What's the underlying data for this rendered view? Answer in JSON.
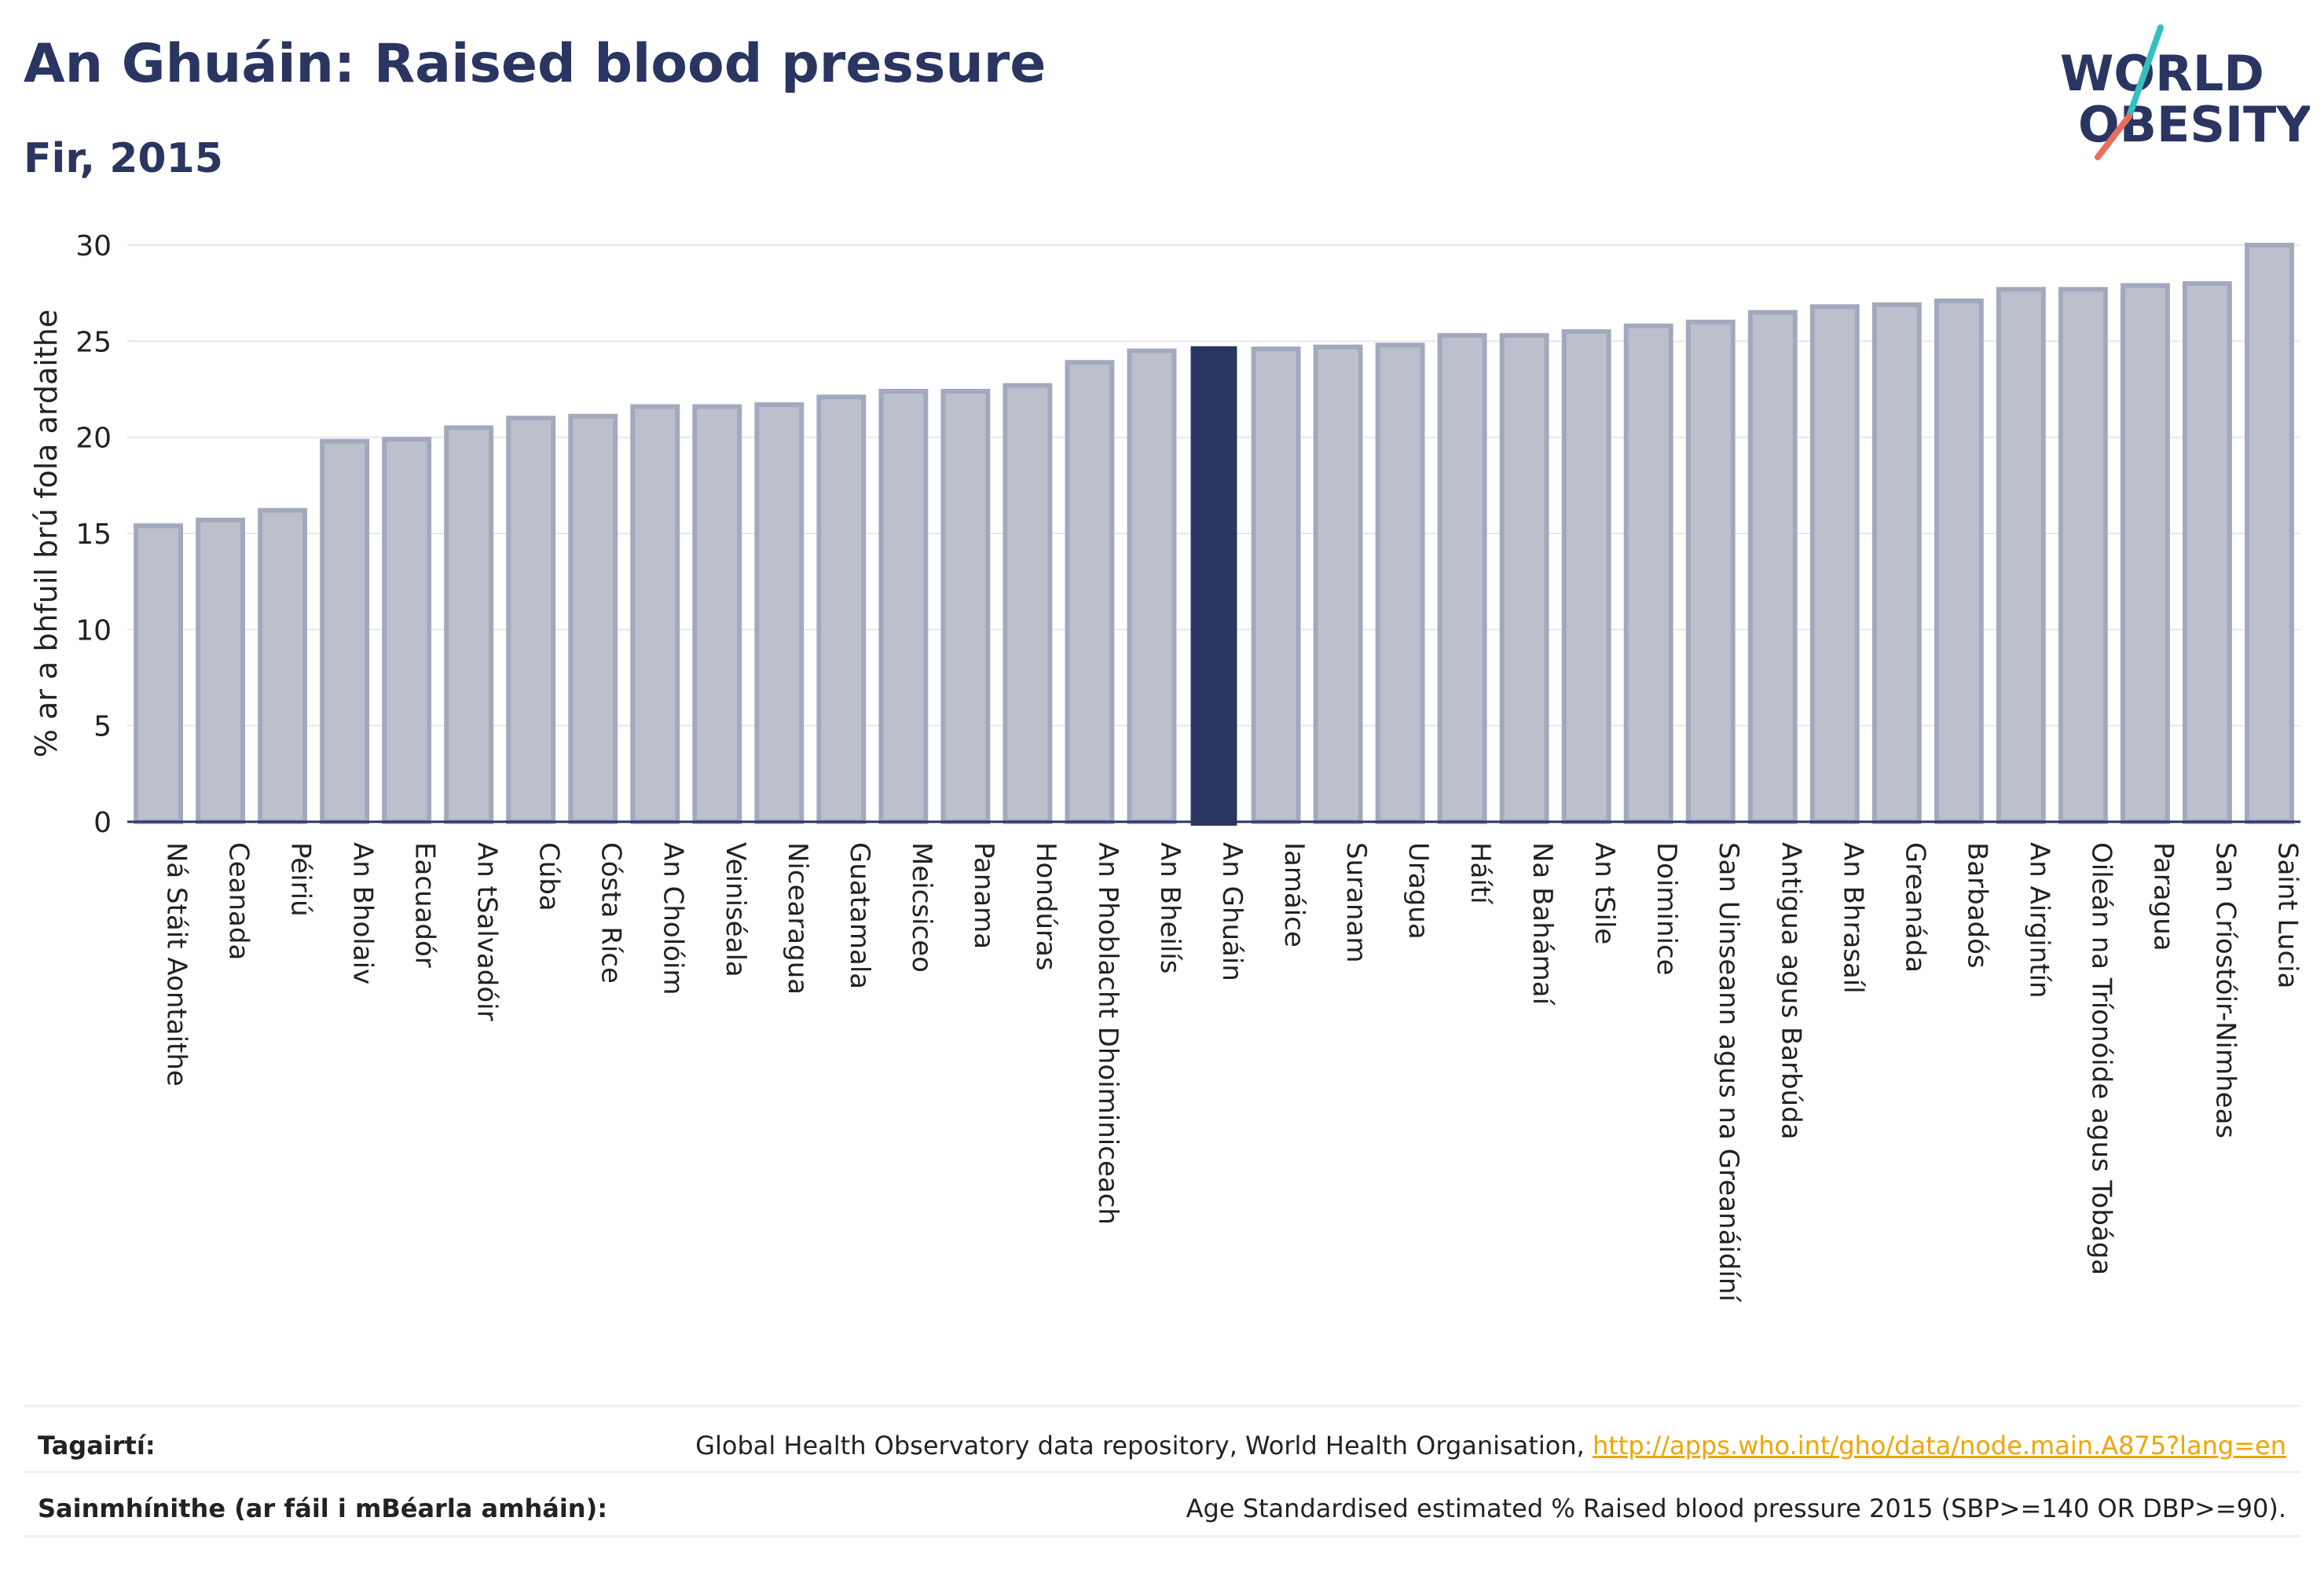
{
  "header": {
    "title": "An Ghuáin: Raised blood pressure",
    "subtitle": "Fir, 2015"
  },
  "logo": {
    "line1": "WORLD",
    "line2": "OBESITY",
    "colors": {
      "text": "#2a3561",
      "slash_top": "#35c0c0",
      "slash_bottom": "#e8705a"
    }
  },
  "chart_data": {
    "type": "bar",
    "ylabel": "% ar a bhfuil brú fola ardaithe",
    "ylim": [
      0,
      30
    ],
    "yticks": [
      0,
      5,
      10,
      15,
      20,
      25,
      30
    ],
    "grid": true,
    "highlight": "An Ghuáin",
    "colors": {
      "bar": "#bcc0cd",
      "bar_border": "#a3a9bd",
      "highlight": "#2a3561",
      "grid": "#e6e8ee",
      "axis": "#2a3561"
    },
    "categories": [
      "Ná Stáit Aontaithe",
      "Ceanada",
      "Péiriú",
      "An Bholaiv",
      "Eacuadór",
      "An tSalvadóir",
      "Cúba",
      "Cósta Ríce",
      "An Cholóim",
      "Veiniséala",
      "Nicearagua",
      "Guatamala",
      "Meicsiceo",
      "Panama",
      "Hondúras",
      "An Phoblacht Dhoiminiceach",
      "An Bheilís",
      "An Ghuáin",
      "Iamáice",
      "Suranam",
      "Uragua",
      "Háítí",
      "Na Bahámaí",
      "An tSile",
      "Doiminice",
      "San Uinseann agus na Greanáidíní",
      "Antigua agus Barbúda",
      "An Bhrasaíl",
      "Greanáda",
      "Barbadós",
      "An Airgintín",
      "Oileán na Tríonóide agus Tobága",
      "Paragua",
      "San Críostóir-Nimheas",
      "Saint Lucia"
    ],
    "values": [
      15.4,
      15.7,
      16.2,
      19.8,
      19.9,
      20.5,
      21.0,
      21.1,
      21.6,
      21.6,
      21.7,
      22.1,
      22.4,
      22.4,
      22.7,
      23.9,
      24.5,
      24.7,
      24.6,
      24.7,
      24.8,
      25.3,
      25.3,
      25.5,
      25.8,
      26.0,
      26.5,
      26.8,
      26.9,
      27.1,
      27.7,
      27.7,
      27.9,
      28.0,
      30.0
    ]
  },
  "footer": {
    "references_label": "Tagairtí:",
    "references_text": "Global Health Observatory data repository, World Health Organisation, ",
    "references_link": "http://apps.who.int/gho/data/node.main.A875?lang=en",
    "definitions_label": "Sainmhínithe (ar fáil i mBéarla amháin):",
    "definitions_text": "Age Standardised estimated % Raised blood pressure 2015 (SBP>=140 OR DBP>=90)."
  }
}
